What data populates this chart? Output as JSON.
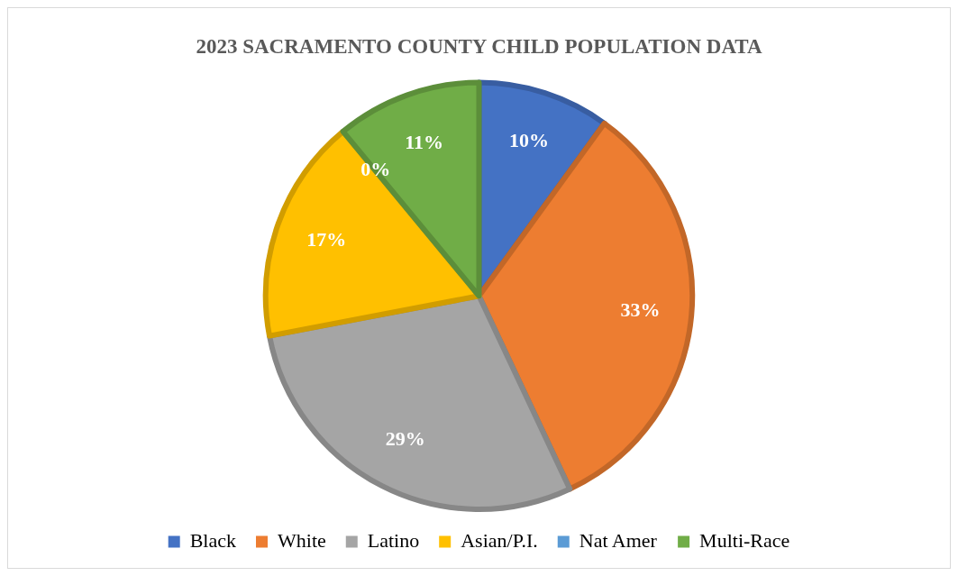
{
  "chart_data": {
    "type": "pie",
    "title": "2023 SACRAMENTO COUNTY CHILD POPULATION DATA",
    "categories": [
      "Black",
      "White",
      "Latino",
      "Asian/P.I.",
      "Nat Amer",
      "Multi-Race"
    ],
    "values": [
      10,
      33,
      29,
      17,
      0,
      11
    ],
    "colors": [
      "#4472c4",
      "#ed7d31",
      "#a5a5a5",
      "#ffc000",
      "#5b9bd5",
      "#70ad47"
    ],
    "value_labels": [
      "10%",
      "33%",
      "29%",
      "17%",
      "0%",
      "11%"
    ],
    "legend": "bottom"
  }
}
